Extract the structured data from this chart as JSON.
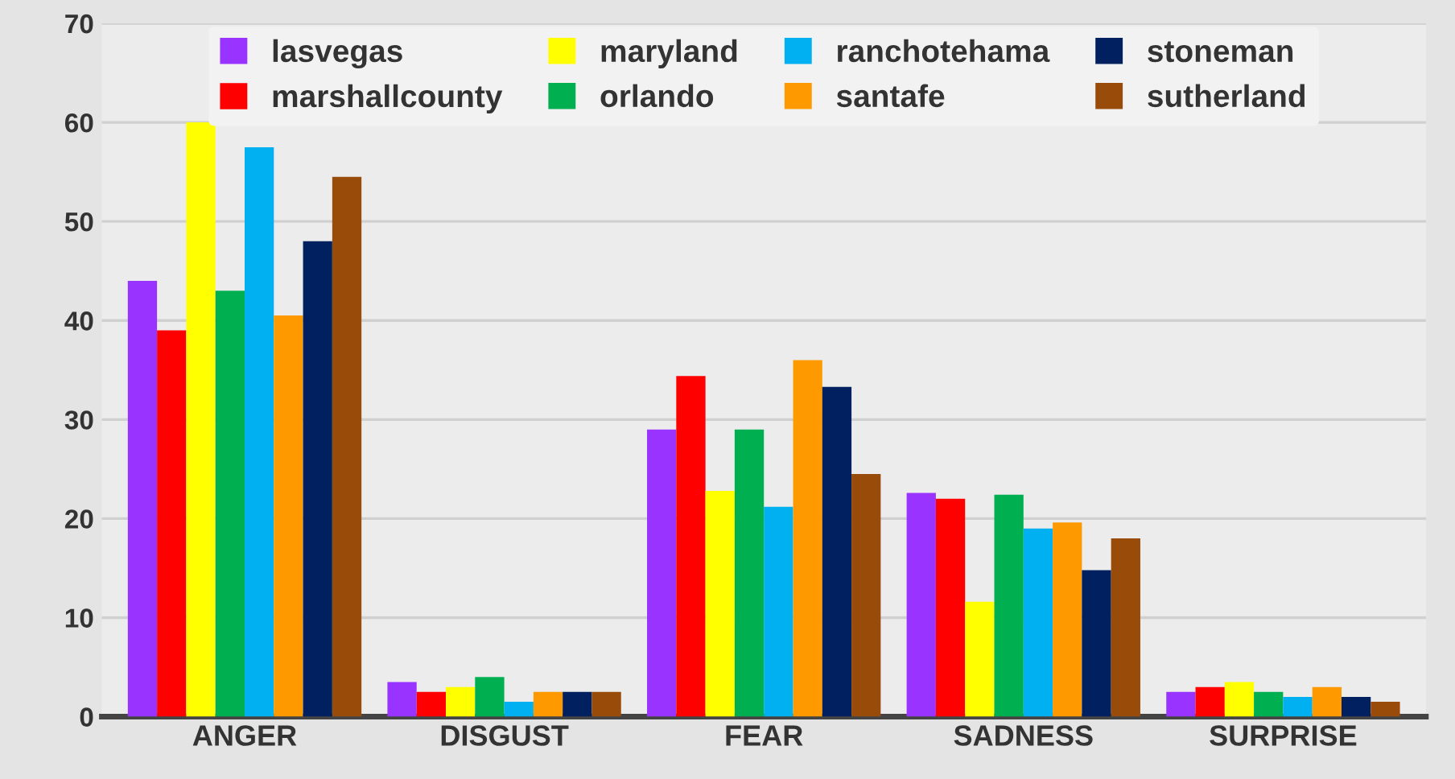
{
  "chart_data": {
    "type": "bar",
    "categories": [
      "ANGER",
      "DISGUST",
      "FEAR",
      "SADNESS",
      "SURPRISE"
    ],
    "series": [
      {
        "name": "lasvegas",
        "color": "#9933ff",
        "values": [
          44,
          3.5,
          29,
          22.6,
          2.5
        ]
      },
      {
        "name": "marshallcounty",
        "color": "#ff0000",
        "values": [
          39,
          2.5,
          34.4,
          22,
          3
        ]
      },
      {
        "name": "maryland",
        "color": "#ffff00",
        "values": [
          60,
          3,
          22.8,
          11.6,
          3.5
        ]
      },
      {
        "name": "orlando",
        "color": "#00b050",
        "values": [
          43,
          4,
          29,
          22.4,
          2.5
        ]
      },
      {
        "name": "ranchotehama",
        "color": "#00b0f0",
        "values": [
          57.5,
          1.5,
          21.2,
          19,
          2
        ]
      },
      {
        "name": "santafe",
        "color": "#ff9900",
        "values": [
          40.5,
          2.5,
          36,
          19.6,
          3
        ]
      },
      {
        "name": "stoneman",
        "color": "#002060",
        "values": [
          48,
          2.5,
          33.3,
          14.8,
          2
        ]
      },
      {
        "name": "sutherland",
        "color": "#994c0a",
        "values": [
          54.5,
          2.5,
          24.5,
          18,
          1.5
        ]
      }
    ],
    "ylim": [
      0,
      70
    ],
    "yticks": [
      0,
      10,
      20,
      30,
      40,
      50,
      60,
      70
    ],
    "grid": "y",
    "legend": "top"
  }
}
